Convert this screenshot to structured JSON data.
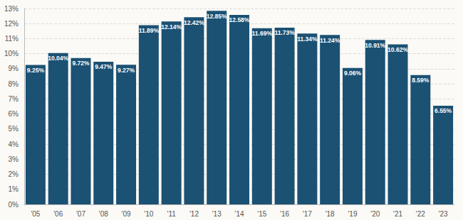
{
  "chart_data": {
    "type": "bar",
    "categories": [
      "'05",
      "'06",
      "'07",
      "'08",
      "'09",
      "'10",
      "'11",
      "'12",
      "'13",
      "'14",
      "'15",
      "'16",
      "'17",
      "'18",
      "'19",
      "'20",
      "'21",
      "'22",
      "'23"
    ],
    "values": [
      9.25,
      10.04,
      9.72,
      9.47,
      9.27,
      11.89,
      12.14,
      12.42,
      12.85,
      12.58,
      11.69,
      11.73,
      11.34,
      11.24,
      9.06,
      10.91,
      10.62,
      8.59,
      6.55
    ],
    "value_labels": [
      "9.25%",
      "10.04%",
      "9.72%",
      "9.47%",
      "9.27%",
      "11.89%",
      "12.14%",
      "12.42%",
      "12.85%",
      "12.58%",
      "11.69%",
      "11.73%",
      "11.34%",
      "11.24%",
      "9.06%",
      "10.91%",
      "10.62%",
      "8.59%",
      "6.55%"
    ],
    "color": "#1b5173",
    "ylim": [
      0,
      13
    ],
    "yticks": [
      {
        "value": 0,
        "label": "0%"
      },
      {
        "value": 1,
        "label": "1%"
      },
      {
        "value": 2,
        "label": "2%"
      },
      {
        "value": 3,
        "label": "3%"
      },
      {
        "value": 4,
        "label": "4%"
      },
      {
        "value": 5,
        "label": "5%"
      },
      {
        "value": 6,
        "label": "6%"
      },
      {
        "value": 7,
        "label": "7%"
      },
      {
        "value": 8,
        "label": "8%"
      },
      {
        "value": 9,
        "label": "9%"
      },
      {
        "value": 10,
        "label": "10%"
      },
      {
        "value": 11,
        "label": "11%"
      },
      {
        "value": 12,
        "label": "12%"
      },
      {
        "value": 13,
        "label": "13%"
      }
    ],
    "grid": true,
    "data_labels": true
  }
}
